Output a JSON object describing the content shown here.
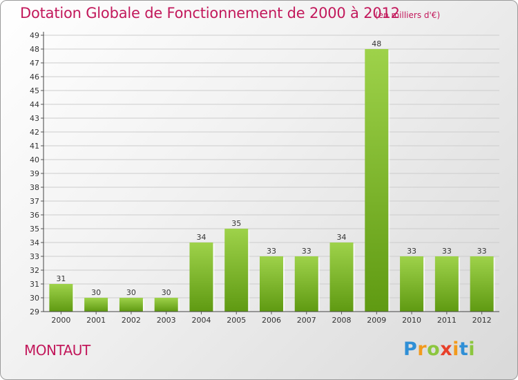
{
  "header": {
    "title": "Dotation Globale de Fonctionnement de 2000 à 2012",
    "subtitle": "(en milliers d'€)"
  },
  "footer": {
    "commune": "MONTAUT",
    "logo": "Proxiti"
  },
  "colors": {
    "title": "#c2185b",
    "bar_light": "#9ed24a",
    "bar_dark": "#5f9a12",
    "grid": "#cccccc"
  },
  "chart_data": {
    "type": "bar",
    "title": "Dotation Globale de Fonctionnement de 2000 à 2012",
    "subtitle": "(en milliers d'€)",
    "categories": [
      "2000",
      "2001",
      "2002",
      "2003",
      "2004",
      "2005",
      "2006",
      "2007",
      "2008",
      "2009",
      "2010",
      "2011",
      "2012"
    ],
    "values": [
      31,
      30,
      30,
      30,
      34,
      35,
      33,
      33,
      34,
      48,
      33,
      33,
      33
    ],
    "ylim": [
      29,
      49
    ],
    "yticks": [
      29,
      30,
      31,
      32,
      33,
      34,
      35,
      36,
      37,
      38,
      39,
      40,
      41,
      42,
      43,
      44,
      45,
      46,
      47,
      48,
      49
    ],
    "grid": true,
    "legend": "none"
  }
}
